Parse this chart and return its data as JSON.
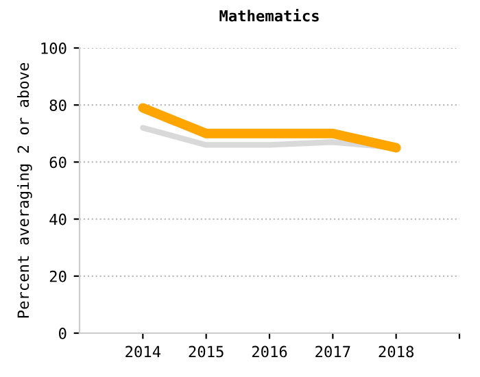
{
  "chart_data": {
    "type": "line",
    "title": "Mathematics",
    "ylabel": "Percent averaging 2 or above",
    "x": [
      2014,
      2015,
      2016,
      2017,
      2018
    ],
    "series": [
      {
        "color": "#d9d9d9",
        "values": [
          72,
          66,
          66,
          67,
          65
        ]
      },
      {
        "color": "#ffa500",
        "values": [
          79,
          70,
          70,
          70,
          65
        ]
      }
    ],
    "xlim": [
      2013,
      2019
    ],
    "xticks": [
      2014,
      2015,
      2016,
      2017,
      2018,
      {
        "value": 2019,
        "label": null
      }
    ],
    "ylim": [
      0,
      100
    ],
    "yticks": [
      0,
      20,
      40,
      60,
      80,
      100
    ],
    "grid": "y",
    "legend": false,
    "marker": "none",
    "line_style": "solid"
  }
}
